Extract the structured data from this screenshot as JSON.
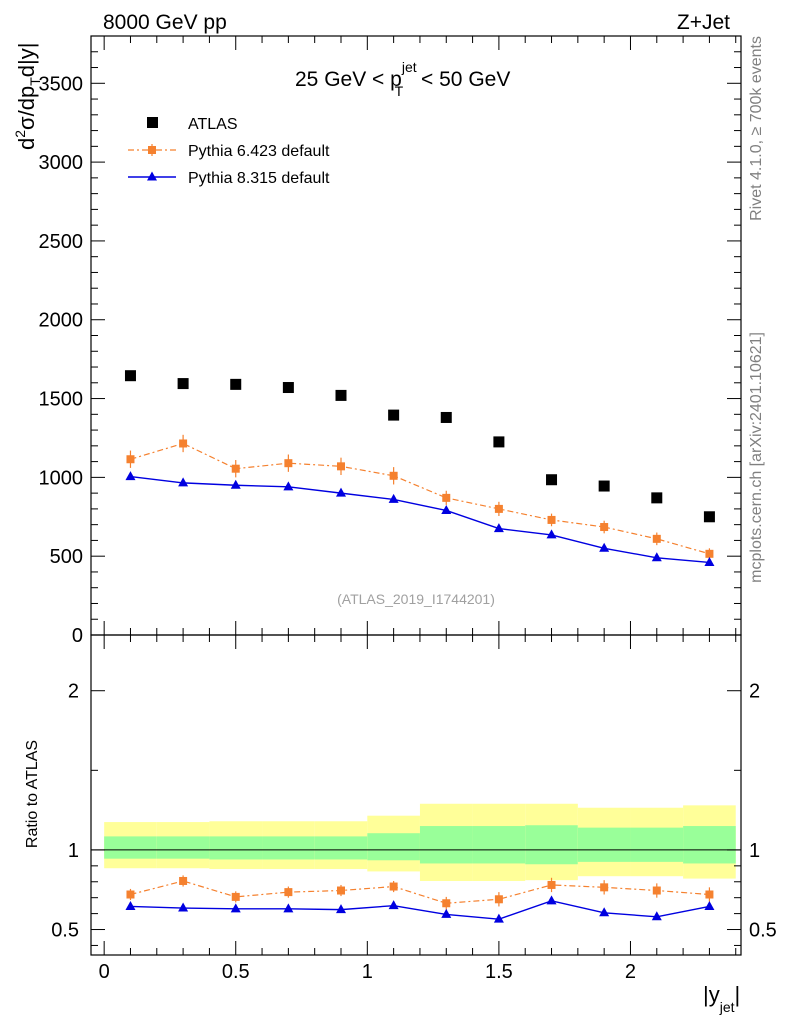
{
  "header": {
    "left": "8000 GeV pp",
    "right": "Z+Jet"
  },
  "side_text": {
    "rivet": "Rivet 4.1.0, ≥ 700k events",
    "mcplots": "mcplots.cern.ch [arXiv:2401.10621]"
  },
  "watermark": "(ATLAS_2019_I1744201)",
  "cut": {
    "pre": "25 GeV < p",
    "sub": "T",
    "sup": "jet",
    "post": " < 50 GeV"
  },
  "ylabel_main": {
    "a": "d",
    "b": "2",
    "c": "σ/dp",
    "d": "T",
    "e": "d|y|"
  },
  "ylabel_ratio": "Ratio to ATLAS",
  "xlabel": {
    "main": "|y",
    "sub": "jet",
    "close": "|"
  },
  "legend": [
    {
      "name": "ATLAS",
      "color": "#000000"
    },
    {
      "name": "Pythia 6.423 default",
      "color": "#f5812f"
    },
    {
      "name": "Pythia 8.315 default",
      "color": "#0000e0"
    }
  ],
  "chart_data": [
    {
      "type": "scatter",
      "panel": "main",
      "x": [
        0.1,
        0.3,
        0.5,
        0.7,
        0.9,
        1.1,
        1.3,
        1.5,
        1.7,
        1.9,
        2.1,
        2.3
      ],
      "series": [
        {
          "name": "ATLAS",
          "values": [
            1645,
            1595,
            1590,
            1570,
            1520,
            1395,
            1380,
            1225,
            985,
            945,
            870,
            750
          ]
        },
        {
          "name": "Pythia 6.423 default",
          "values": [
            1115,
            1215,
            1055,
            1090,
            1070,
            1010,
            870,
            800,
            730,
            685,
            610,
            515
          ],
          "errors": [
            55,
            55,
            55,
            55,
            55,
            55,
            45,
            45,
            40,
            40,
            40,
            35
          ]
        },
        {
          "name": "Pythia 8.315 default",
          "values": [
            1005,
            965,
            950,
            940,
            900,
            860,
            790,
            675,
            635,
            550,
            490,
            460
          ],
          "errors": [
            10,
            10,
            10,
            10,
            10,
            10,
            10,
            10,
            10,
            10,
            10,
            10
          ]
        }
      ],
      "xlim": [
        -0.05,
        2.42
      ],
      "ylim": [
        0,
        3800
      ],
      "yticks": [
        0,
        500,
        1000,
        1500,
        2000,
        2500,
        3000,
        3500
      ],
      "title": "25 GeV < pT(jet) < 50 GeV"
    },
    {
      "type": "line",
      "panel": "ratio",
      "x": [
        0.1,
        0.3,
        0.5,
        0.7,
        0.9,
        1.1,
        1.3,
        1.5,
        1.7,
        1.9,
        2.1,
        2.3
      ],
      "series": [
        {
          "name": "Pythia 6.423 default",
          "values": [
            0.72,
            0.805,
            0.705,
            0.735,
            0.745,
            0.77,
            0.665,
            0.69,
            0.78,
            0.765,
            0.745,
            0.72
          ],
          "errors": [
            0.035,
            0.035,
            0.035,
            0.035,
            0.035,
            0.035,
            0.04,
            0.045,
            0.045,
            0.045,
            0.045,
            0.045
          ]
        },
        {
          "name": "Pythia 8.315 default",
          "values": [
            0.645,
            0.635,
            0.63,
            0.63,
            0.625,
            0.65,
            0.595,
            0.565,
            0.68,
            0.605,
            0.58,
            0.645
          ],
          "errors": [
            0.01,
            0.01,
            0.01,
            0.01,
            0.01,
            0.01,
            0.015,
            0.015,
            0.02,
            0.02,
            0.02,
            0.02
          ]
        }
      ],
      "bands": {
        "x_edges": [
          0,
          0.2,
          0.4,
          0.6,
          0.8,
          1.0,
          1.2,
          1.4,
          1.6,
          1.8,
          2.0,
          2.2,
          2.4
        ],
        "inner_lo": [
          0.945,
          0.945,
          0.94,
          0.94,
          0.94,
          0.935,
          0.915,
          0.915,
          0.91,
          0.925,
          0.925,
          0.915
        ],
        "inner_hi": [
          1.085,
          1.085,
          1.085,
          1.085,
          1.085,
          1.105,
          1.15,
          1.15,
          1.155,
          1.14,
          1.14,
          1.15
        ],
        "outer_lo": [
          0.885,
          0.885,
          0.88,
          0.88,
          0.88,
          0.865,
          0.805,
          0.805,
          0.81,
          0.835,
          0.835,
          0.82
        ],
        "outer_hi": [
          1.175,
          1.175,
          1.18,
          1.18,
          1.18,
          1.215,
          1.29,
          1.29,
          1.29,
          1.265,
          1.265,
          1.28
        ],
        "inner_color": "#99ff99",
        "outer_color": "#ffff99"
      },
      "xlim": [
        -0.05,
        2.42
      ],
      "ylim": [
        0.34,
        2.35
      ],
      "yticks": [
        0.5,
        1,
        2
      ],
      "xticks": [
        0,
        0.5,
        1,
        1.5,
        2
      ],
      "ylabel": "Ratio to ATLAS"
    }
  ]
}
